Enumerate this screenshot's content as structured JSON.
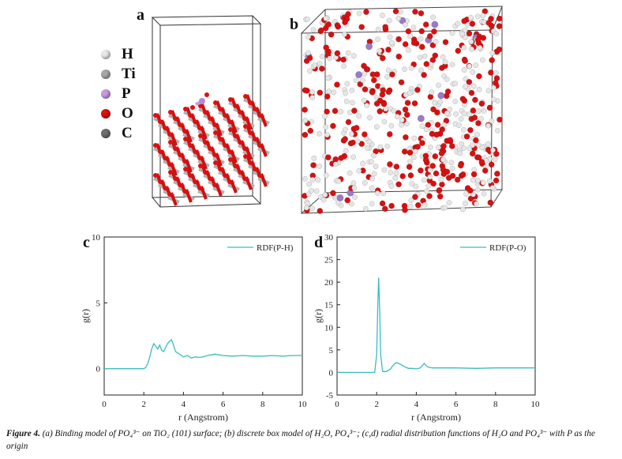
{
  "panel_labels": {
    "a": "a",
    "b": "b",
    "c": "c",
    "d": "d"
  },
  "legend": [
    {
      "label": "H",
      "color": "#e8e8e8"
    },
    {
      "label": "Ti",
      "color": "#a8a8a8"
    },
    {
      "label": "P",
      "color": "#c89be0"
    },
    {
      "label": "O",
      "color": "#e01010"
    },
    {
      "label": "C",
      "color": "#6e6e6e"
    }
  ],
  "caption": {
    "prefix": "Figure 4.",
    "text": "(a) Binding model of PO₄³⁻ on TiO₂ (101) surface; (b) discrete box model of H₂O, PO₄³⁻; (c,d) radial distribution functions of H₂O and PO₄³⁻ with P as the origin"
  },
  "chart_data": [
    {
      "type": "line",
      "panel": "c",
      "xlabel": "r (Angstrom)",
      "ylabel": "g(r)",
      "xlim": [
        0,
        10
      ],
      "ylim": [
        -2,
        10
      ],
      "xticks": [
        0,
        2,
        4,
        6,
        8,
        10
      ],
      "yticks": [
        0,
        5,
        10
      ],
      "legend_position": "top-right",
      "series": [
        {
          "name": "RDF(P-H)",
          "color": "#3cbcbc",
          "x": [
            0,
            2.0,
            2.1,
            2.2,
            2.3,
            2.4,
            2.5,
            2.6,
            2.7,
            2.8,
            2.9,
            3.0,
            3.1,
            3.2,
            3.3,
            3.4,
            3.5,
            3.6,
            3.7,
            3.8,
            3.9,
            4.0,
            4.2,
            4.4,
            4.6,
            4.8,
            5.0,
            5.2,
            5.4,
            5.6,
            5.8,
            6.0,
            6.5,
            7.0,
            7.5,
            8.0,
            8.5,
            9.0,
            9.5,
            10.0
          ],
          "y": [
            0,
            0,
            0.1,
            0.4,
            0.9,
            1.5,
            1.9,
            1.7,
            1.5,
            1.8,
            1.4,
            1.3,
            1.6,
            1.9,
            2.1,
            2.2,
            1.8,
            1.3,
            1.2,
            1.1,
            1.0,
            0.9,
            1.0,
            0.8,
            0.9,
            0.85,
            0.9,
            1.0,
            1.05,
            1.1,
            1.05,
            1.0,
            0.95,
            1.0,
            0.95,
            0.95,
            1.0,
            0.95,
            1.0,
            1.0
          ]
        }
      ]
    },
    {
      "type": "line",
      "panel": "d",
      "xlabel": "r (Angstrom)",
      "ylabel": "g(r)",
      "xlim": [
        0,
        10
      ],
      "ylim": [
        -5,
        30
      ],
      "xticks": [
        0,
        2,
        4,
        6,
        8,
        10
      ],
      "yticks": [
        -5,
        0,
        5,
        10,
        15,
        20,
        25,
        30
      ],
      "legend_position": "top-right",
      "series": [
        {
          "name": "RDF(P-O)",
          "color": "#3cbcbc",
          "x": [
            0,
            1.9,
            2.0,
            2.05,
            2.1,
            2.15,
            2.2,
            2.3,
            2.5,
            2.7,
            2.8,
            2.9,
            3.0,
            3.2,
            3.4,
            3.6,
            3.8,
            4.0,
            4.2,
            4.3,
            4.4,
            4.5,
            4.6,
            4.8,
            5.0,
            6.0,
            7.0,
            8.0,
            9.0,
            10.0
          ],
          "y": [
            0,
            0,
            4,
            14,
            21,
            14,
            4,
            0.2,
            0.2,
            0.8,
            1.4,
            1.9,
            2.2,
            1.8,
            1.3,
            0.9,
            0.9,
            0.8,
            1.0,
            1.5,
            2.0,
            1.5,
            1.2,
            1.0,
            1.0,
            1.0,
            0.9,
            1.0,
            1.0,
            1.0
          ]
        }
      ]
    }
  ]
}
